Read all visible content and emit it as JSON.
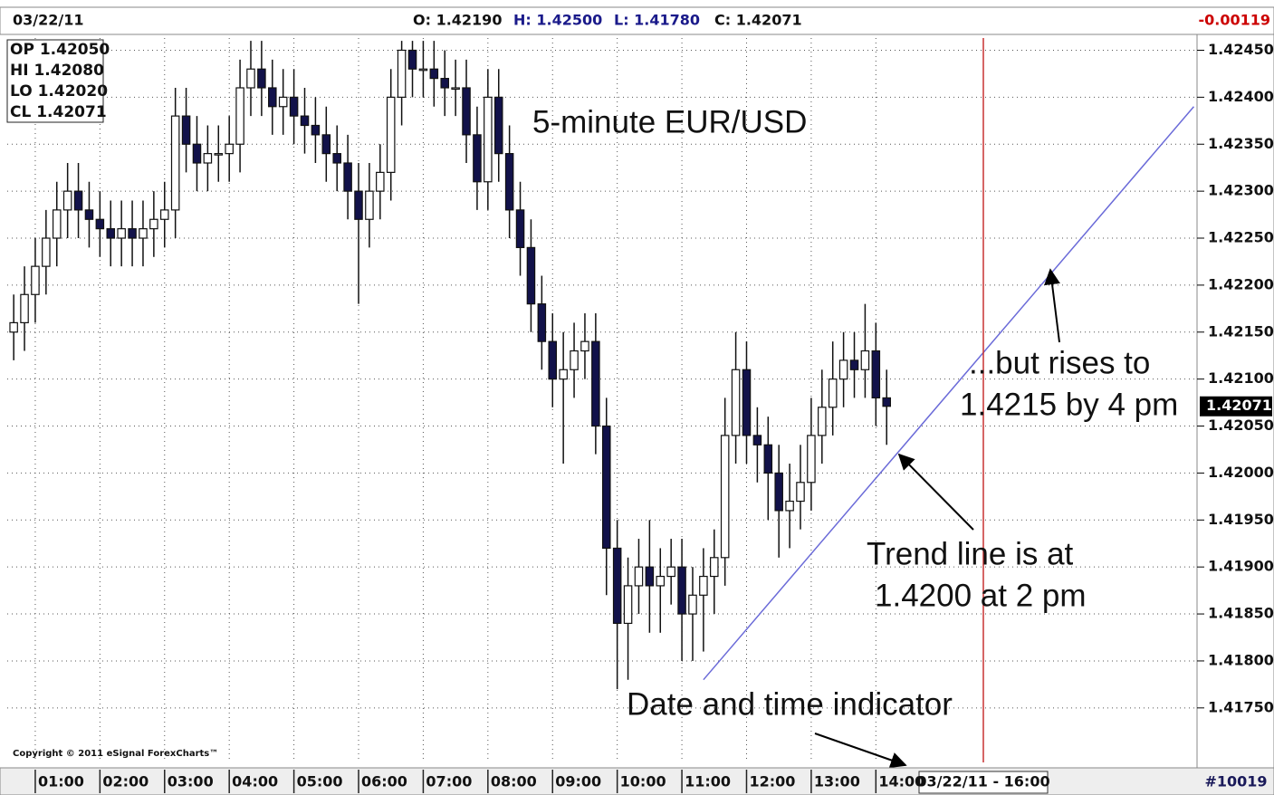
{
  "chart_data": {
    "type": "candlestick",
    "header_date": "03/22/11",
    "ohlc_labels": [
      "O: 1.42190",
      "H: 1.42500",
      "L: 1.41780",
      "C: 1.42071"
    ],
    "change": "-0.00119",
    "info_box": [
      "OP 1.42050",
      "HI 1.42080",
      "LO 1.42020",
      "CL 1.42071"
    ],
    "annotations": [
      "5-minute EUR/USD",
      "...but rises to",
      "1.4215 by 4 pm",
      "Trend line is at",
      "1.4200 at 2 pm",
      "Date and time indicator"
    ],
    "copyright": "Copyright © 2011 eSignal ForexCharts™",
    "cursor_label": "03/22/11 - 16:00",
    "bar_count": "#10019",
    "up_color": "#ffffff",
    "down_color": "#12124a",
    "change_color": "#cc0000",
    "trendline_color": "#6a6ad8",
    "grid": true,
    "x": [
      "00:40",
      "00:50",
      "01:00",
      "01:10",
      "01:20",
      "01:30",
      "01:40",
      "01:50",
      "02:00",
      "02:10",
      "02:20",
      "02:30",
      "02:40",
      "02:50",
      "03:00",
      "03:10",
      "03:20",
      "03:30",
      "03:40",
      "03:50",
      "04:00",
      "04:10",
      "04:20",
      "04:30",
      "04:40",
      "04:50",
      "05:00",
      "05:10",
      "05:20",
      "05:30",
      "05:40",
      "05:50",
      "06:00",
      "06:10",
      "06:20",
      "06:30",
      "06:40",
      "06:50",
      "07:00",
      "07:10",
      "07:20",
      "07:30",
      "07:40",
      "07:50",
      "08:00",
      "08:10",
      "08:20",
      "08:30",
      "08:40",
      "08:50",
      "09:00",
      "09:10",
      "09:20",
      "09:30",
      "09:40",
      "09:50",
      "10:00",
      "10:10",
      "10:20",
      "10:30",
      "10:40",
      "10:50",
      "11:00",
      "11:10",
      "11:20",
      "11:30",
      "11:40",
      "11:50",
      "12:00",
      "12:10",
      "12:20",
      "12:30",
      "12:40",
      "12:50",
      "13:00",
      "13:10",
      "13:20",
      "13:30",
      "13:40",
      "13:50",
      "14:00",
      "14:10"
    ],
    "open": [
      1.4215,
      1.4216,
      1.4219,
      1.4222,
      1.4225,
      1.4228,
      1.423,
      1.4228,
      1.4227,
      1.4226,
      1.4225,
      1.4226,
      1.4225,
      1.4226,
      1.4227,
      1.4228,
      1.4238,
      1.4235,
      1.4233,
      1.4234,
      1.4234,
      1.4235,
      1.4241,
      1.4243,
      1.4241,
      1.4239,
      1.424,
      1.4238,
      1.4237,
      1.4236,
      1.4234,
      1.4233,
      1.423,
      1.4227,
      1.423,
      1.4232,
      1.424,
      1.4245,
      1.4243,
      1.4243,
      1.4242,
      1.4241,
      1.4241,
      1.4236,
      1.4231,
      1.424,
      1.4234,
      1.4228,
      1.4224,
      1.4218,
      1.4214,
      1.421,
      1.4211,
      1.4213,
      1.4214,
      1.4205,
      1.4192,
      1.4184,
      1.4188,
      1.419,
      1.4188,
      1.4189,
      1.419,
      1.4185,
      1.4187,
      1.4189,
      1.4191,
      1.4204,
      1.4211,
      1.4204,
      1.4203,
      1.42,
      1.4196,
      1.4197,
      1.4199,
      1.4204,
      1.4207,
      1.421,
      1.4212,
      1.4211,
      1.4213,
      1.4208
    ],
    "high": [
      1.4219,
      1.4222,
      1.4225,
      1.4228,
      1.4231,
      1.4233,
      1.4233,
      1.4231,
      1.423,
      1.4229,
      1.4229,
      1.4229,
      1.4229,
      1.423,
      1.4231,
      1.4241,
      1.4241,
      1.4238,
      1.4237,
      1.4237,
      1.4238,
      1.4244,
      1.4246,
      1.4246,
      1.4244,
      1.4243,
      1.4243,
      1.4241,
      1.424,
      1.4239,
      1.4237,
      1.4236,
      1.4233,
      1.4233,
      1.4235,
      1.4243,
      1.4246,
      1.4246,
      1.4246,
      1.4246,
      1.4245,
      1.4244,
      1.4244,
      1.4239,
      1.4243,
      1.4243,
      1.4237,
      1.4231,
      1.4227,
      1.4221,
      1.4217,
      1.4215,
      1.4216,
      1.4217,
      1.4217,
      1.4208,
      1.4195,
      1.4191,
      1.4193,
      1.4195,
      1.4192,
      1.4193,
      1.4193,
      1.419,
      1.4192,
      1.4194,
      1.4208,
      1.4215,
      1.4214,
      1.4207,
      1.4206,
      1.4203,
      1.4201,
      1.4203,
      1.4208,
      1.4211,
      1.4214,
      1.4215,
      1.4215,
      1.4218,
      1.4216,
      1.4211
    ],
    "low": [
      1.4212,
      1.4213,
      1.4216,
      1.4219,
      1.4222,
      1.4225,
      1.4225,
      1.4224,
      1.4223,
      1.4222,
      1.4222,
      1.4222,
      1.4222,
      1.4223,
      1.4224,
      1.4225,
      1.4232,
      1.423,
      1.423,
      1.4231,
      1.4231,
      1.4232,
      1.4238,
      1.4238,
      1.4236,
      1.4236,
      1.4235,
      1.4234,
      1.4233,
      1.4231,
      1.423,
      1.4227,
      1.4218,
      1.4224,
      1.4227,
      1.4229,
      1.4237,
      1.424,
      1.424,
      1.4239,
      1.4238,
      1.4238,
      1.4233,
      1.4228,
      1.4228,
      1.4231,
      1.4225,
      1.4221,
      1.4215,
      1.4211,
      1.4207,
      1.4201,
      1.4208,
      1.421,
      1.4202,
      1.4187,
      1.4177,
      1.4178,
      1.4185,
      1.4183,
      1.4183,
      1.4186,
      1.418,
      1.418,
      1.4181,
      1.4185,
      1.4188,
      1.4201,
      1.4201,
      1.4199,
      1.4195,
      1.4191,
      1.4192,
      1.4194,
      1.4196,
      1.4201,
      1.4204,
      1.4207,
      1.4208,
      1.4208,
      1.4205,
      1.4203
    ],
    "close": [
      1.4216,
      1.4219,
      1.4222,
      1.4225,
      1.4228,
      1.423,
      1.4228,
      1.4227,
      1.4226,
      1.4225,
      1.4226,
      1.4225,
      1.4226,
      1.4227,
      1.4228,
      1.4238,
      1.4235,
      1.4233,
      1.4234,
      1.4234,
      1.4235,
      1.4241,
      1.4243,
      1.4241,
      1.4239,
      1.424,
      1.4238,
      1.4237,
      1.4236,
      1.4234,
      1.4233,
      1.423,
      1.4227,
      1.423,
      1.4232,
      1.424,
      1.4245,
      1.4243,
      1.4243,
      1.4242,
      1.4241,
      1.4241,
      1.4236,
      1.4231,
      1.424,
      1.4234,
      1.4228,
      1.4224,
      1.4218,
      1.4214,
      1.421,
      1.4211,
      1.4213,
      1.4214,
      1.4205,
      1.4192,
      1.4184,
      1.4188,
      1.419,
      1.4188,
      1.4189,
      1.419,
      1.4185,
      1.4187,
      1.4189,
      1.4191,
      1.4204,
      1.4211,
      1.4204,
      1.4203,
      1.42,
      1.4196,
      1.4197,
      1.4199,
      1.4204,
      1.4207,
      1.421,
      1.4212,
      1.4211,
      1.4213,
      1.4208,
      1.42071
    ],
    "trendline": {
      "x": [
        "11:20",
        "18:55"
      ],
      "values": [
        1.4178,
        1.4239
      ]
    },
    "last_price": {
      "value": 1.42071,
      "label": "1.42071"
    },
    "xlim": [
      "00:34",
      "18:58"
    ],
    "xticks": [
      "01:00",
      "02:00",
      "03:00",
      "04:00",
      "05:00",
      "06:00",
      "07:00",
      "08:00",
      "09:00",
      "10:00",
      "11:00",
      "12:00",
      "13:00",
      "14:00"
    ],
    "ylim": [
      1.41692,
      1.42463
    ],
    "yticks": [
      {
        "value": 1.4245,
        "label": "1.42450"
      },
      {
        "value": 1.424,
        "label": "1.42400"
      },
      {
        "value": 1.4235,
        "label": "1.42350"
      },
      {
        "value": 1.423,
        "label": "1.42300"
      },
      {
        "value": 1.4225,
        "label": "1.42250"
      },
      {
        "value": 1.422,
        "label": "1.42200"
      },
      {
        "value": 1.4215,
        "label": "1.42150"
      },
      {
        "value": 1.421,
        "label": "1.42100"
      },
      {
        "value": 1.4205,
        "label": "1.42050"
      },
      {
        "value": 1.42,
        "label": "1.42000"
      },
      {
        "value": 1.4195,
        "label": "1.41950"
      },
      {
        "value": 1.419,
        "label": "1.41900"
      },
      {
        "value": 1.4185,
        "label": "1.41850"
      },
      {
        "value": 1.418,
        "label": "1.41800"
      },
      {
        "value": 1.4175,
        "label": "1.41750"
      }
    ]
  }
}
